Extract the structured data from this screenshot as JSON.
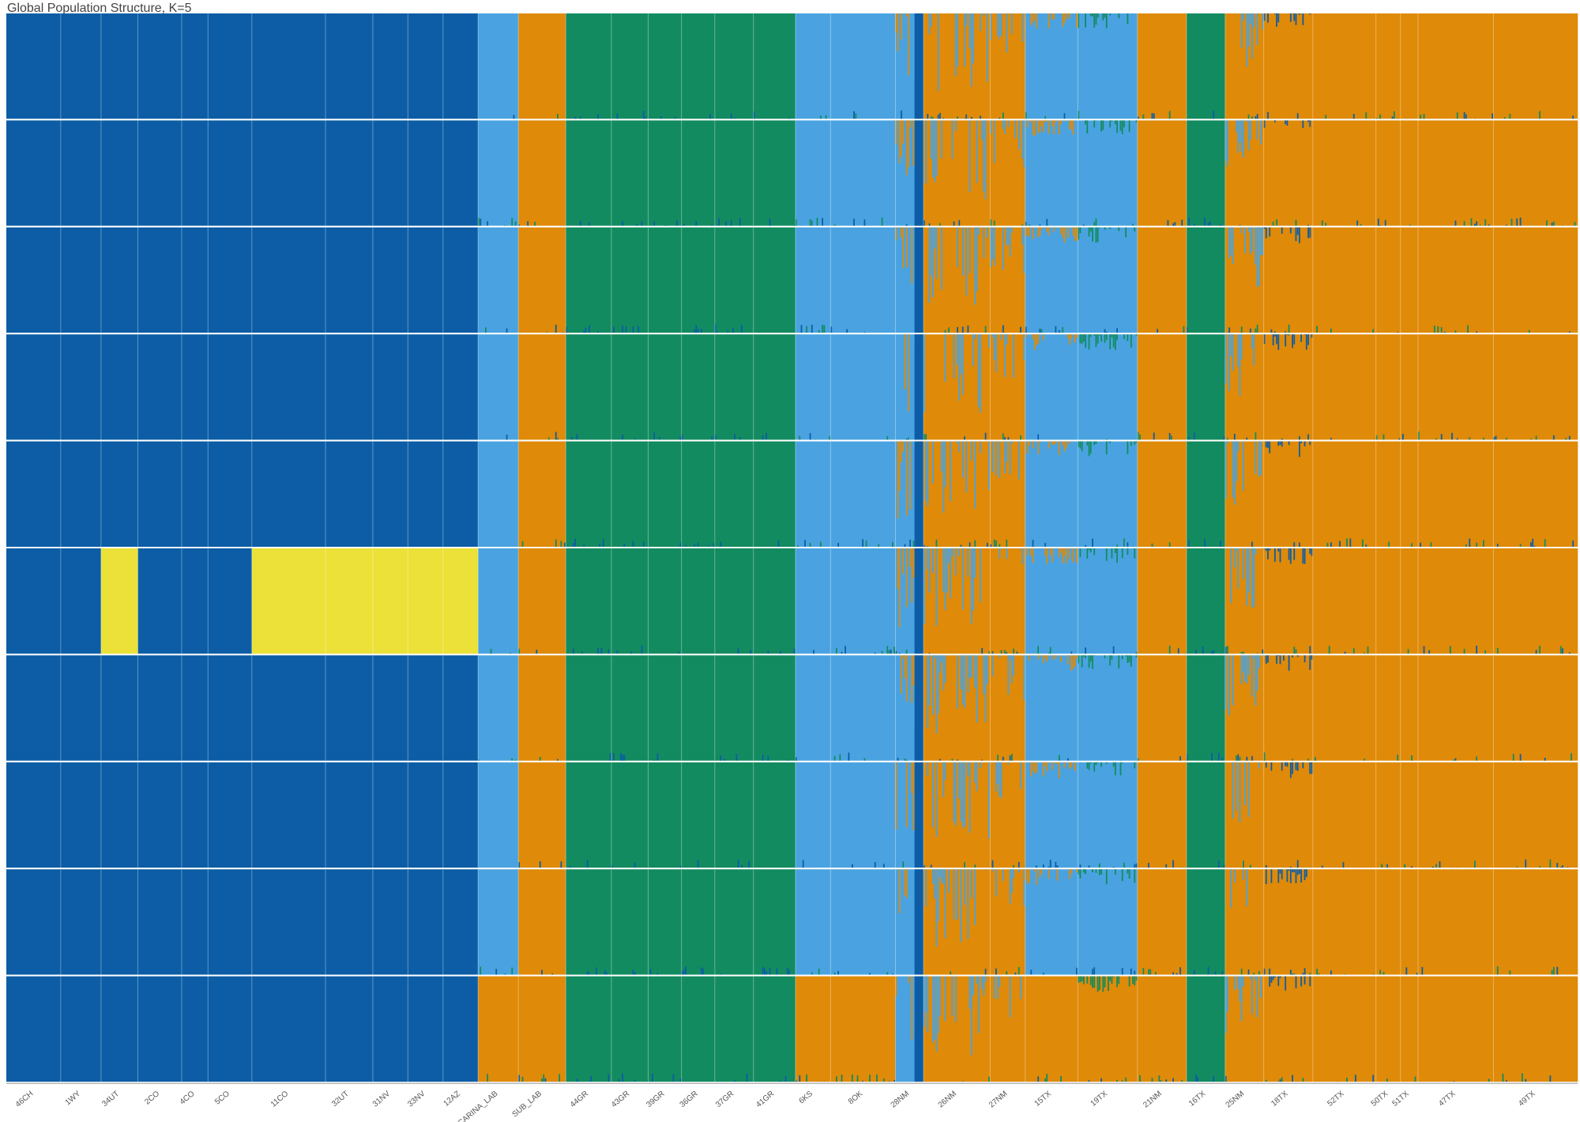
{
  "chart_data": {
    "type": "bar",
    "title": "Global Population Structure, K=5",
    "colors": {
      "c1": "#0c5da5",
      "c2": "#4aa3e0",
      "c3": "#df8a08",
      "c4": "#138b60",
      "c5": "#ebe138",
      "separator": "#ffffff"
    },
    "populations": [
      "46CH",
      "1WY",
      "34UT",
      "2CO",
      "4CO",
      "5CO",
      "11CO",
      "32UT",
      "31NV",
      "33NV",
      "12AZ",
      "CARINA_LAB",
      "SUB_LAB",
      "44GR",
      "43GR",
      "39GR",
      "36GR",
      "37GR",
      "41GR",
      "6KS",
      "8OK",
      "28NM",
      "26NM",
      "27NM",
      "15TX",
      "19TX",
      "21NM",
      "16TX",
      "25NM",
      "18TX",
      "52TX",
      "50TX",
      "51TX",
      "47TX",
      "49TX"
    ],
    "population_sizes": [
      31,
      23,
      21,
      25,
      15,
      25,
      42,
      27,
      20,
      20,
      20,
      23,
      27,
      26,
      21,
      19,
      19,
      22,
      24,
      20,
      37,
      16,
      38,
      20,
      30,
      34,
      28,
      22,
      22,
      28,
      36,
      14,
      10,
      43,
      48
    ],
    "runs": [
      {
        "yellow_pops": [],
        "caf": "c2"
      },
      {
        "yellow_pops": [],
        "caf": "c2"
      },
      {
        "yellow_pops": [],
        "caf": "c2"
      },
      {
        "yellow_pops": [],
        "caf": "c2"
      },
      {
        "yellow_pops": [],
        "caf": "c2"
      },
      {
        "yellow_pops": [
          "34UT",
          "11CO",
          "32UT",
          "31NV",
          "33NV",
          "12AZ"
        ],
        "caf": "c2"
      },
      {
        "yellow_pops": [],
        "caf": "c2"
      },
      {
        "yellow_pops": [],
        "caf": "c2"
      },
      {
        "yellow_pops": [],
        "caf": "c2"
      },
      {
        "yellow_pops": [],
        "caf": "c3"
      }
    ],
    "ylim": [
      0,
      1
    ],
    "grid": false
  }
}
